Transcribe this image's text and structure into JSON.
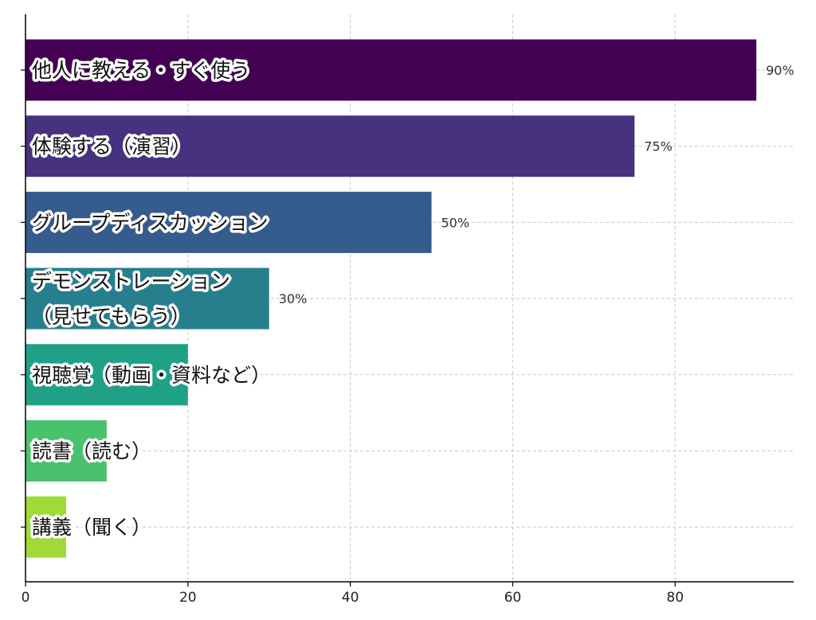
{
  "chart_data": {
    "type": "bar",
    "orientation": "horizontal",
    "categories": [
      "他人に教える・すぐ使う",
      "体験する（演習）",
      "グループディスカッション",
      "デモンストレーション\n（見せてもらう）",
      "視聴覚（動画・資料など）",
      "読書（読む）",
      "講義（聞く）"
    ],
    "values": [
      90,
      75,
      50,
      30,
      20,
      10,
      5
    ],
    "value_labels": [
      "90%",
      "75%",
      "50%",
      "30%",
      "",
      "",
      ""
    ],
    "colors": [
      "#440154",
      "#46327e",
      "#365c8d",
      "#277f8e",
      "#1fa187",
      "#4ac16d",
      "#a0da39"
    ],
    "xlim": [
      0,
      94.6
    ],
    "xticks": [
      0,
      20,
      40,
      60,
      80
    ],
    "grid": true,
    "title": "",
    "xlabel": "",
    "ylabel": ""
  }
}
